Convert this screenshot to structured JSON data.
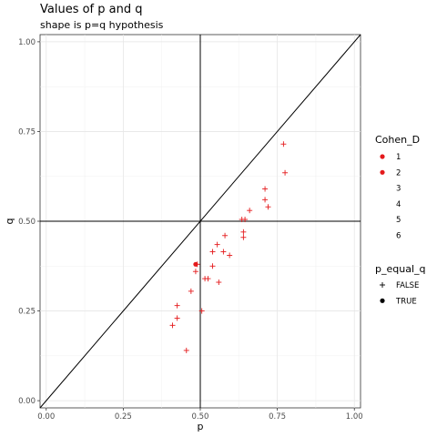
{
  "chart_data": {
    "type": "scatter",
    "title": "Values of p and q",
    "subtitle": "shape is p=q hypothesis",
    "xlabel": "p",
    "ylabel": "q",
    "xlim": [
      -0.02,
      1.02
    ],
    "ylim": [
      -0.02,
      1.02
    ],
    "xticks": [
      0.0,
      0.25,
      0.5,
      0.75,
      1.0
    ],
    "yticks": [
      0.0,
      0.25,
      0.5,
      0.75,
      1.0
    ],
    "xtick_labels": [
      "0.00",
      "0.25",
      "0.50",
      "0.75",
      "1.00"
    ],
    "ytick_labels": [
      "0.00",
      "0.25",
      "0.50",
      "0.75",
      "1.00"
    ],
    "grid": true,
    "reference_lines": {
      "vline_x": 0.5,
      "hline_y": 0.5,
      "diagonal": "p = q"
    },
    "point_color": "#e41a1c",
    "legend_placement": "right",
    "legend": {
      "color_title": "Cohen_D",
      "color_entries": [
        {
          "label": "1",
          "marker_visible": true
        },
        {
          "label": "2",
          "marker_visible": true
        },
        {
          "label": "3",
          "marker_visible": false
        },
        {
          "label": "4",
          "marker_visible": false
        },
        {
          "label": "5",
          "marker_visible": false
        },
        {
          "label": "6",
          "marker_visible": false
        }
      ],
      "shape_title": "p_equal_q",
      "shape_entries": [
        {
          "label": "FALSE",
          "shape": "plus"
        },
        {
          "label": "TRUE",
          "shape": "dot"
        }
      ]
    },
    "points": [
      {
        "p": 0.77,
        "q": 0.715,
        "shape": "plus"
      },
      {
        "p": 0.775,
        "q": 0.635,
        "shape": "plus"
      },
      {
        "p": 0.71,
        "q": 0.59,
        "shape": "plus"
      },
      {
        "p": 0.71,
        "q": 0.56,
        "shape": "plus"
      },
      {
        "p": 0.72,
        "q": 0.54,
        "shape": "plus"
      },
      {
        "p": 0.66,
        "q": 0.53,
        "shape": "plus"
      },
      {
        "p": 0.635,
        "q": 0.505,
        "shape": "plus"
      },
      {
        "p": 0.645,
        "q": 0.505,
        "shape": "plus"
      },
      {
        "p": 0.64,
        "q": 0.47,
        "shape": "plus"
      },
      {
        "p": 0.64,
        "q": 0.455,
        "shape": "plus"
      },
      {
        "p": 0.58,
        "q": 0.46,
        "shape": "plus"
      },
      {
        "p": 0.555,
        "q": 0.435,
        "shape": "plus"
      },
      {
        "p": 0.54,
        "q": 0.415,
        "shape": "plus"
      },
      {
        "p": 0.575,
        "q": 0.415,
        "shape": "plus"
      },
      {
        "p": 0.595,
        "q": 0.405,
        "shape": "plus"
      },
      {
        "p": 0.49,
        "q": 0.38,
        "shape": "plus"
      },
      {
        "p": 0.54,
        "q": 0.375,
        "shape": "plus"
      },
      {
        "p": 0.485,
        "q": 0.36,
        "shape": "plus"
      },
      {
        "p": 0.515,
        "q": 0.34,
        "shape": "plus"
      },
      {
        "p": 0.525,
        "q": 0.34,
        "shape": "plus"
      },
      {
        "p": 0.56,
        "q": 0.33,
        "shape": "plus"
      },
      {
        "p": 0.47,
        "q": 0.305,
        "shape": "plus"
      },
      {
        "p": 0.425,
        "q": 0.265,
        "shape": "plus"
      },
      {
        "p": 0.505,
        "q": 0.25,
        "shape": "plus"
      },
      {
        "p": 0.425,
        "q": 0.23,
        "shape": "plus"
      },
      {
        "p": 0.41,
        "q": 0.21,
        "shape": "plus"
      },
      {
        "p": 0.455,
        "q": 0.14,
        "shape": "plus"
      },
      {
        "p": 0.485,
        "q": 0.38,
        "shape": "dot"
      }
    ]
  }
}
